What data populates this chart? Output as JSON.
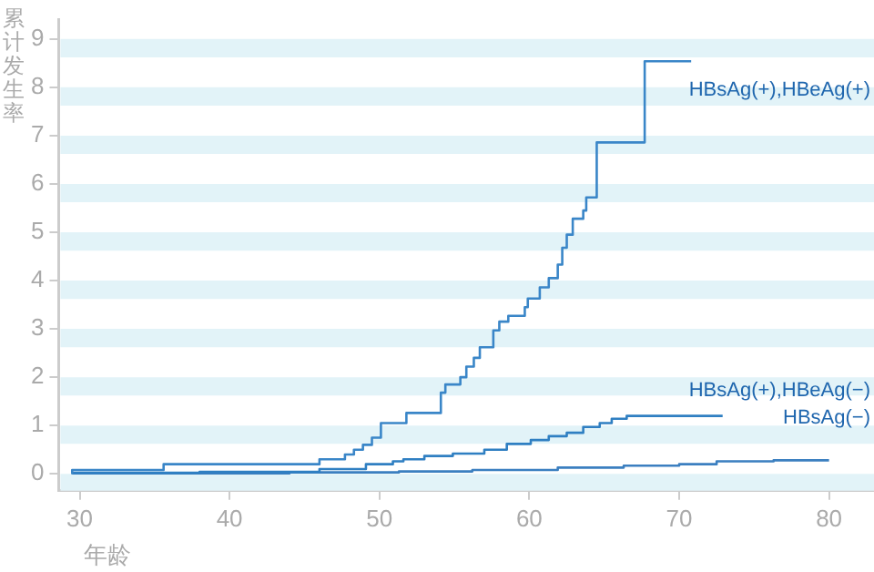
{
  "chart_data": {
    "type": "step",
    "xlabel": "年龄",
    "ylabel": "累计发生率",
    "xlim": [
      28.6,
      83
    ],
    "xticks": [
      30,
      40,
      50,
      60,
      70,
      80
    ],
    "ylim": [
      -0.35,
      9.4
    ],
    "yticks": [
      0,
      1,
      2,
      3,
      4,
      5,
      6,
      7,
      8,
      9
    ],
    "legend": false,
    "bands": [
      {
        "axis": "y",
        "from": 8.62,
        "to": 9,
        "color": "#e2f3f8"
      },
      {
        "axis": "y",
        "from": 7.62,
        "to": 8,
        "color": "#e2f3f8"
      },
      {
        "axis": "y",
        "from": 6.62,
        "to": 7,
        "color": "#e2f3f8"
      },
      {
        "axis": "y",
        "from": 5.62,
        "to": 6,
        "color": "#e2f3f8"
      },
      {
        "axis": "y",
        "from": 4.62,
        "to": 5,
        "color": "#e2f3f8"
      },
      {
        "axis": "y",
        "from": 3.62,
        "to": 4,
        "color": "#e2f3f8"
      },
      {
        "axis": "y",
        "from": 2.62,
        "to": 3,
        "color": "#e2f3f8"
      },
      {
        "axis": "y",
        "from": 1.62,
        "to": 2,
        "color": "#e2f3f8"
      },
      {
        "axis": "y",
        "from": 0.62,
        "to": 1,
        "color": "#e2f3f8"
      },
      {
        "axis": "y",
        "from": -0.35,
        "to": 0,
        "color": "#e2f3f8"
      }
    ],
    "series": [
      {
        "name": "HBsAg(+),HBeAg(+)",
        "color": "#3a86c8",
        "x": [
          29.5,
          35.6,
          46,
          47.7,
          48.3,
          48.9,
          49.5,
          50.1,
          51.8,
          54.1,
          54.4,
          55.4,
          55.8,
          56.3,
          56.7,
          57.6,
          58.0,
          58.6,
          59.7,
          59.9,
          60.7,
          61.3,
          61.9,
          62.2,
          62.5,
          62.9,
          63.6,
          63.8,
          64.5,
          67.7,
          68.2,
          70.8
        ],
        "values": [
          0,
          0.08,
          0.2,
          0.3,
          0.4,
          0.5,
          0.6,
          0.75,
          1.05,
          1.26,
          1.68,
          1.85,
          2.0,
          2.22,
          2.4,
          2.62,
          2.97,
          3.15,
          3.27,
          3.45,
          3.63,
          3.86,
          4.05,
          4.33,
          4.68,
          4.95,
          5.28,
          5.45,
          5.72,
          6.86,
          8.54,
          8.54
        ]
      },
      {
        "name": "HBsAg(+),HBeAg(−)",
        "color": "#2f7fc2",
        "x": [
          29.5,
          38,
          46,
          49.1,
          50.9,
          51.6,
          53,
          54.9,
          57,
          58.5,
          60.1,
          61.3,
          62.5,
          63.6,
          64.7,
          65.5,
          66.5,
          69.8,
          72.9
        ],
        "values": [
          0,
          0.02,
          0.04,
          0.1,
          0.2,
          0.26,
          0.3,
          0.37,
          0.42,
          0.5,
          0.62,
          0.7,
          0.78,
          0.85,
          0.97,
          1.05,
          1.14,
          1.2,
          1.2
        ]
      },
      {
        "name": "HBsAg(−)",
        "color": "#3b7fc0",
        "x": [
          29.5,
          44,
          51.3,
          56.2,
          61.9,
          66.3,
          70,
          72.5,
          76.3,
          78.6,
          80
        ],
        "values": [
          0,
          0.01,
          0.03,
          0.05,
          0.08,
          0.13,
          0.17,
          0.2,
          0.26,
          0.28,
          0.28
        ]
      }
    ]
  }
}
